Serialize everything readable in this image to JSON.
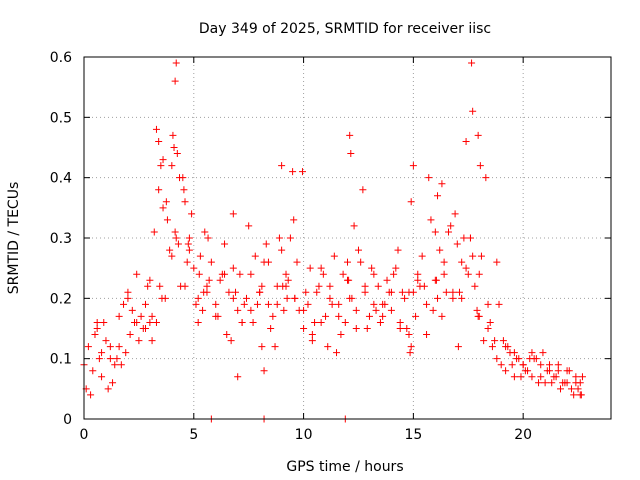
{
  "chart_data": {
    "type": "scatter",
    "title": "Day 349 of 2025, SRMTID for receiver iisc",
    "xlabel": "GPS time / hours",
    "ylabel": "SRMTID / TECUs",
    "xlim": [
      0,
      24
    ],
    "ylim": [
      0,
      0.6
    ],
    "xticks": [
      0,
      5,
      10,
      15,
      20
    ],
    "xtick_labels": [
      "0",
      "5",
      "10",
      "15",
      "20"
    ],
    "yticks": [
      0,
      0.1,
      0.2,
      0.3,
      0.4,
      0.5,
      0.6
    ],
    "ytick_labels": [
      "0",
      "0.1",
      "0.2",
      "0.3",
      "0.4",
      "0.5",
      "0.6"
    ],
    "grid": true,
    "marker": "plus",
    "color": "#ff0000",
    "series": [
      {
        "name": "SRMTID",
        "x": [
          0.0,
          0.2,
          0.4,
          0.6,
          0.8,
          1.0,
          1.2,
          1.4,
          1.6,
          1.8,
          2.0,
          2.2,
          2.4,
          2.6,
          2.8,
          3.0,
          3.2,
          3.4,
          3.5,
          3.6,
          3.8,
          4.0,
          4.1,
          4.2,
          4.4,
          4.6,
          4.8,
          5.0,
          5.2,
          5.4,
          5.6,
          5.8,
          6.0,
          6.2,
          6.4,
          6.6,
          6.8,
          7.0,
          7.2,
          7.4,
          7.6,
          7.8,
          8.0,
          8.2,
          8.4,
          8.6,
          8.8,
          9.0,
          9.2,
          9.4,
          9.6,
          9.8,
          10.0,
          10.2,
          10.4,
          10.6,
          10.8,
          11.0,
          11.2,
          11.4,
          11.6,
          11.8,
          12.0,
          12.2,
          12.4,
          12.6,
          12.8,
          13.0,
          13.2,
          13.4,
          13.6,
          13.8,
          14.0,
          14.2,
          14.4,
          14.6,
          14.8,
          15.0,
          15.2,
          15.4,
          15.6,
          15.8,
          16.0,
          16.2,
          16.4,
          16.6,
          16.8,
          17.0,
          17.2,
          17.4,
          17.6,
          17.8,
          18.0,
          18.2,
          18.4,
          18.6,
          18.8,
          19.0,
          19.2,
          19.4,
          19.6,
          19.8,
          20.0,
          20.2,
          20.4,
          20.6,
          20.8,
          21.0,
          21.2,
          21.4,
          21.6,
          21.8,
          22.0,
          22.2,
          22.4,
          22.6,
          22.7,
          0.1,
          0.5,
          0.9,
          1.3,
          1.7,
          2.1,
          2.5,
          2.9,
          3.3,
          3.7,
          3.9,
          4.3,
          4.5,
          4.7,
          4.9,
          5.1,
          5.3,
          5.5,
          5.7,
          6.1,
          6.5,
          6.9,
          7.3,
          7.7,
          8.1,
          8.5,
          8.9,
          9.1,
          9.3,
          9.7,
          10.1,
          10.5,
          10.9,
          11.3,
          11.7,
          12.1,
          12.5,
          12.9,
          13.3,
          13.7,
          14.1,
          14.5,
          14.9,
          15.1,
          15.5,
          15.9,
          16.1,
          16.5,
          16.9,
          17.1,
          17.5,
          17.9,
          18.1,
          18.5,
          18.9,
          19.3,
          19.7,
          20.1,
          20.5,
          20.9,
          21.3,
          21.7,
          22.1,
          22.5,
          0.3,
          0.7,
          1.1,
          1.5,
          1.9,
          2.3,
          2.7,
          3.1,
          3.45,
          3.55,
          3.75,
          4.05,
          4.15,
          4.25,
          4.35,
          4.55,
          4.75,
          5.25,
          5.45,
          5.65,
          6.3,
          6.7,
          7.1,
          7.5,
          7.9,
          8.3,
          8.7,
          9.05,
          9.25,
          9.55,
          9.95,
          10.3,
          10.7,
          11.1,
          11.5,
          11.9,
          12.05,
          12.3,
          12.7,
          13.1,
          13.5,
          13.9,
          14.3,
          14.7,
          14.85,
          15.3,
          15.7,
          16.05,
          16.3,
          16.7,
          17.05,
          17.3,
          17.7,
          17.95,
          18.3,
          18.7,
          19.1,
          19.5,
          19.9,
          20.3,
          20.7,
          21.1,
          21.5,
          21.9,
          22.3,
          22.6,
          4.2,
          4.15,
          17.65,
          17.7,
          17.95,
          18.05,
          5.8,
          8.2,
          11.9,
          3.3,
          3.4,
          4.0,
          12.1,
          12.15,
          9.0,
          9.5,
          15.0,
          17.4,
          16.1,
          16.3,
          6.8,
          7.0,
          8.2,
          8.1,
          14.9,
          3.0,
          3.1,
          0.6,
          0.8,
          1.2,
          1.6,
          2.0,
          2.4,
          2.8,
          3.6,
          4.6,
          4.8,
          5.2,
          5.6,
          6.0,
          6.4,
          6.8,
          7.2,
          7.6,
          8.0,
          8.4,
          8.8,
          9.2,
          9.6,
          10.0,
          10.4,
          10.8,
          11.2,
          11.6,
          12.0,
          12.4,
          12.8,
          13.2,
          13.6,
          14.0,
          14.4,
          14.8,
          15.2,
          15.6,
          16.0,
          16.4,
          16.8,
          17.2,
          17.6,
          18.0,
          18.4,
          18.8,
          19.2,
          19.6,
          20.0,
          20.4,
          20.8,
          21.2,
          21.6,
          22.0,
          22.4,
          22.65
        ],
        "y": [
          0.09,
          0.12,
          0.08,
          0.15,
          0.11,
          0.13,
          0.1,
          0.09,
          0.12,
          0.19,
          0.21,
          0.18,
          0.24,
          0.17,
          0.19,
          0.23,
          0.31,
          0.38,
          0.42,
          0.35,
          0.33,
          0.27,
          0.45,
          0.3,
          0.22,
          0.36,
          0.28,
          0.25,
          0.2,
          0.18,
          0.22,
          0.26,
          0.17,
          0.23,
          0.29,
          0.21,
          0.25,
          0.18,
          0.16,
          0.2,
          0.24,
          0.27,
          0.21,
          0.26,
          0.19,
          0.17,
          0.22,
          0.28,
          0.24,
          0.3,
          0.2,
          0.18,
          0.15,
          0.19,
          0.13,
          0.21,
          0.25,
          0.17,
          0.22,
          0.27,
          0.19,
          0.24,
          0.23,
          0.2,
          0.18,
          0.26,
          0.21,
          0.17,
          0.24,
          0.22,
          0.19,
          0.23,
          0.18,
          0.25,
          0.16,
          0.2,
          0.14,
          0.21,
          0.24,
          0.27,
          0.19,
          0.33,
          0.23,
          0.28,
          0.26,
          0.31,
          0.2,
          0.29,
          0.26,
          0.25,
          0.3,
          0.22,
          0.17,
          0.13,
          0.15,
          0.12,
          0.1,
          0.09,
          0.08,
          0.11,
          0.07,
          0.1,
          0.09,
          0.08,
          0.07,
          0.1,
          0.09,
          0.06,
          0.08,
          0.07,
          0.09,
          0.06,
          0.08,
          0.05,
          0.07,
          0.06,
          0.07,
          0.05,
          0.14,
          0.16,
          0.06,
          0.09,
          0.14,
          0.13,
          0.22,
          0.16,
          0.2,
          0.28,
          0.29,
          0.4,
          0.26,
          0.34,
          0.19,
          0.27,
          0.31,
          0.23,
          0.17,
          0.14,
          0.21,
          0.19,
          0.16,
          0.22,
          0.15,
          0.3,
          0.18,
          0.23,
          0.26,
          0.21,
          0.16,
          0.24,
          0.19,
          0.14,
          0.2,
          0.28,
          0.15,
          0.18,
          0.19,
          0.24,
          0.21,
          0.12,
          0.17,
          0.22,
          0.18,
          0.2,
          0.21,
          0.34,
          0.21,
          0.24,
          0.18,
          0.27,
          0.16,
          0.19,
          0.12,
          0.1,
          0.08,
          0.1,
          0.11,
          0.06,
          0.05,
          0.08,
          0.05,
          0.04,
          0.1,
          0.05,
          0.1,
          0.11,
          0.16,
          0.15,
          0.17,
          0.22,
          0.2,
          0.36,
          0.47,
          0.31,
          0.44,
          0.4,
          0.38,
          0.29,
          0.24,
          0.21,
          0.3,
          0.24,
          0.13,
          0.24,
          0.32,
          0.19,
          0.29,
          0.12,
          0.22,
          0.2,
          0.33,
          0.41,
          0.25,
          0.22,
          0.12,
          0.11,
          0.16,
          0.23,
          0.32,
          0.38,
          0.25,
          0.16,
          0.21,
          0.28,
          0.15,
          0.11,
          0.22,
          0.4,
          0.23,
          0.17,
          0.32,
          0.12,
          0.3,
          0.27,
          0.17,
          0.4,
          0.13,
          0.13,
          0.09,
          0.07,
          0.1,
          0.06,
          0.08,
          0.07,
          0.06,
          0.04,
          0.04,
          0.59,
          0.56,
          0.59,
          0.51,
          0.47,
          0.42,
          0.0,
          0.0,
          0.0,
          0.48,
          0.46,
          0.42,
          0.47,
          0.44,
          0.42,
          0.41,
          0.42,
          0.46,
          0.37,
          0.39,
          0.34,
          0.07,
          0.08,
          0.12,
          0.36,
          0.16,
          0.13,
          0.16,
          0.07,
          0.12,
          0.17,
          0.2,
          0.16,
          0.15,
          0.43,
          0.22,
          0.3,
          0.16,
          0.21,
          0.19,
          0.24,
          0.2,
          0.16,
          0.18,
          0.21,
          0.26,
          0.19,
          0.22,
          0.2,
          0.18,
          0.14,
          0.16,
          0.2,
          0.17,
          0.26,
          0.15,
          0.22,
          0.19,
          0.17,
          0.21,
          0.15,
          0.21,
          0.23,
          0.14,
          0.31,
          0.24,
          0.21,
          0.2,
          0.3,
          0.24,
          0.19,
          0.26,
          0.12,
          0.11,
          0.09,
          0.11,
          0.07,
          0.09,
          0.08,
          0.06,
          0.06,
          0.04
        ]
      }
    ]
  }
}
